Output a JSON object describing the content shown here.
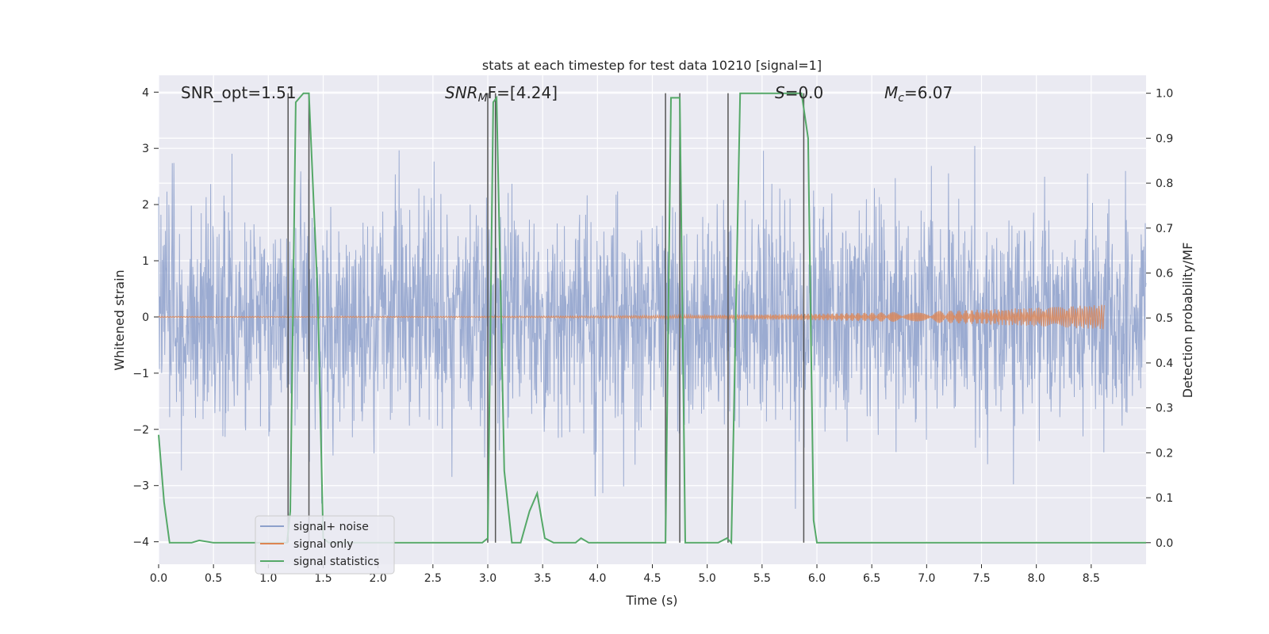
{
  "chart_data": {
    "type": "line",
    "title": "stats at each timestep for test data 10210 [signal=1]",
    "xlabel": "Time (s)",
    "ylabel": "Whitened strain",
    "y2label": "Detection probability/MF",
    "xlim": [
      0,
      9.0
    ],
    "ylim": [
      -4.4,
      4.3
    ],
    "y2lim": [
      -0.048,
      1.04
    ],
    "x_ticks": [
      0.0,
      0.5,
      1.0,
      1.5,
      2.0,
      2.5,
      3.0,
      3.5,
      4.0,
      4.5,
      5.0,
      5.5,
      6.0,
      6.5,
      7.0,
      7.5,
      8.0,
      8.5
    ],
    "x_tick_labels": [
      "0.0",
      "0.5",
      "1.0",
      "1.5",
      "2.0",
      "2.5",
      "3.0",
      "3.5",
      "4.0",
      "4.5",
      "5.0",
      "5.5",
      "6.0",
      "6.5",
      "7.0",
      "7.5",
      "8.0",
      "8.5"
    ],
    "y_ticks": [
      4,
      3,
      2,
      1,
      0,
      -1,
      -2,
      -3,
      -4
    ],
    "y_tick_labels": [
      "4",
      "3",
      "2",
      "1",
      "0",
      "−1",
      "−2",
      "−3",
      "−4"
    ],
    "y2_ticks": [
      1.0,
      0.9,
      0.8,
      0.7,
      0.6,
      0.5,
      0.4,
      0.3,
      0.2,
      0.1,
      0.0
    ],
    "y2_tick_labels": [
      "1.0",
      "0.9",
      "0.8",
      "0.7",
      "0.6",
      "0.5",
      "0.4",
      "0.3",
      "0.2",
      "0.1",
      "0.0"
    ],
    "grid": true,
    "legend_position": "bottom-left",
    "annotations": {
      "snr_opt": "SNR_opt=1.51",
      "snr_mf_main": "SNR",
      "snr_mf_sub": "M",
      "snr_mf_rest": "F=[4.24]",
      "s_var": "S",
      "s_rest": "=0.0",
      "mc_var": "M",
      "mc_sub": "c",
      "mc_rest": "=6.07"
    },
    "series": [
      {
        "name": "signal+ noise",
        "color": "#8da0cb",
        "noise_std": 0.95,
        "x_range": [
          0,
          9.0
        ]
      },
      {
        "name": "signal only",
        "color": "#dd8452",
        "x_range": [
          0,
          8.62
        ],
        "amplitude_start": 0.01,
        "amplitude_end": 0.22
      },
      {
        "name": "signal statistics",
        "color": "#55a868",
        "axis": "right",
        "x": [
          0.0,
          0.05,
          0.1,
          0.3,
          0.37,
          0.5,
          1.0,
          1.17,
          1.2,
          1.25,
          1.32,
          1.37,
          1.45,
          1.5,
          1.55,
          2.0,
          2.5,
          2.95,
          3.0,
          3.05,
          3.08,
          3.15,
          3.22,
          3.3,
          3.38,
          3.45,
          3.52,
          3.6,
          3.7,
          3.8,
          3.85,
          3.92,
          4.0,
          4.5,
          4.62,
          4.67,
          4.75,
          4.8,
          4.88,
          5.0,
          5.1,
          5.18,
          5.22,
          5.3,
          5.5,
          5.86,
          5.92,
          5.97,
          6.0,
          6.5,
          7.0,
          7.4,
          7.5,
          8.0,
          9.0
        ],
        "values": [
          0.24,
          0.09,
          0.0,
          0.0,
          0.005,
          0.0,
          0.0,
          0.0,
          0.07,
          0.98,
          1.0,
          1.0,
          0.55,
          0.01,
          0.0,
          0.0,
          0.0,
          0.0,
          0.01,
          0.98,
          0.99,
          0.16,
          0.0,
          0.0,
          0.07,
          0.11,
          0.01,
          0.0,
          0.0,
          0.0,
          0.01,
          0.0,
          0.0,
          0.0,
          0.0,
          0.99,
          0.99,
          0.0,
          0.0,
          0.0,
          0.0,
          0.01,
          0.0,
          1.0,
          1.0,
          1.0,
          0.9,
          0.05,
          0.0,
          0.0,
          0.0,
          0.0,
          0.0,
          0.0,
          0.0
        ]
      }
    ],
    "vertical_markers": {
      "color": "#555555",
      "x": [
        1.18,
        1.37,
        3.0,
        3.07,
        4.62,
        4.75,
        5.19,
        5.88
      ]
    }
  }
}
